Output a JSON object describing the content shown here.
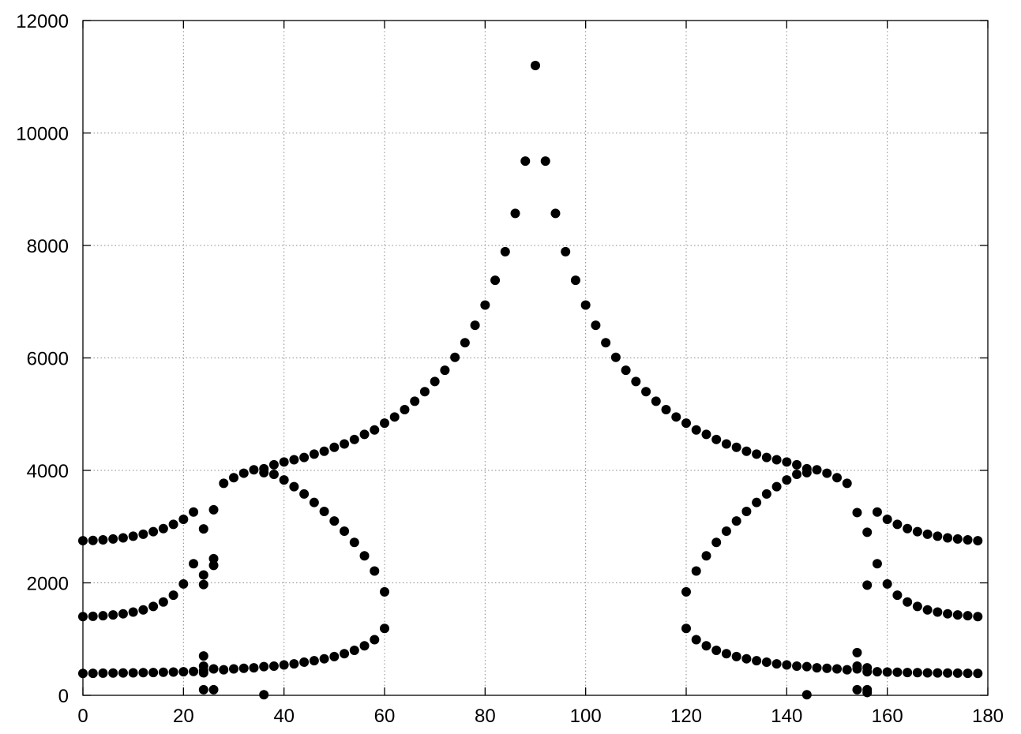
{
  "chart_data": {
    "type": "scatter",
    "title": "",
    "xlabel": "",
    "ylabel": "",
    "xlim": [
      0,
      180
    ],
    "ylim": [
      0,
      12000
    ],
    "xticks": [
      "0",
      "20",
      "40",
      "60",
      "80",
      "100",
      "120",
      "140",
      "160",
      "180"
    ],
    "yticks": [
      "0",
      "2000",
      "4000",
      "6000",
      "8000",
      "10000",
      "12000"
    ],
    "grid": true,
    "legend": "none",
    "marker_color": "#000000",
    "series": [
      {
        "points": [
          [
            0,
            2750
          ],
          [
            2,
            2755
          ],
          [
            4,
            2765
          ],
          [
            6,
            2780
          ],
          [
            8,
            2800
          ],
          [
            10,
            2830
          ],
          [
            12,
            2865
          ],
          [
            14,
            2910
          ],
          [
            16,
            2965
          ],
          [
            18,
            3040
          ],
          [
            20,
            3130
          ],
          [
            22,
            3260
          ],
          [
            26,
            3300
          ],
          [
            28,
            3770
          ],
          [
            30,
            3870
          ],
          [
            32,
            3950
          ],
          [
            34,
            4010
          ],
          [
            36,
            4030
          ],
          [
            38,
            4100
          ],
          [
            40,
            4150
          ],
          [
            42,
            4190
          ],
          [
            44,
            4230
          ],
          [
            46,
            4290
          ],
          [
            48,
            4340
          ],
          [
            50,
            4410
          ],
          [
            52,
            4470
          ],
          [
            54,
            4550
          ],
          [
            56,
            4640
          ],
          [
            58,
            4720
          ],
          [
            60,
            4840
          ],
          [
            62,
            4950
          ],
          [
            64,
            5080
          ],
          [
            66,
            5230
          ],
          [
            68,
            5400
          ],
          [
            70,
            5580
          ],
          [
            72,
            5780
          ],
          [
            74,
            6010
          ],
          [
            76,
            6270
          ],
          [
            78,
            6580
          ],
          [
            80,
            6940
          ],
          [
            82,
            7380
          ],
          [
            84,
            7890
          ],
          [
            86,
            8570
          ],
          [
            88,
            9500
          ],
          [
            90,
            11200
          ],
          [
            92,
            9500
          ],
          [
            94,
            8570
          ],
          [
            96,
            7890
          ],
          [
            98,
            7380
          ],
          [
            100,
            6940
          ],
          [
            102,
            6580
          ],
          [
            104,
            6270
          ],
          [
            106,
            6010
          ],
          [
            108,
            5780
          ],
          [
            110,
            5580
          ],
          [
            112,
            5400
          ],
          [
            114,
            5230
          ],
          [
            116,
            5080
          ],
          [
            118,
            4950
          ],
          [
            120,
            4840
          ],
          [
            122,
            4720
          ],
          [
            124,
            4640
          ],
          [
            126,
            4550
          ],
          [
            128,
            4470
          ],
          [
            130,
            4410
          ],
          [
            132,
            4340
          ],
          [
            134,
            4290
          ],
          [
            136,
            4230
          ],
          [
            138,
            4190
          ],
          [
            140,
            4150
          ],
          [
            142,
            4100
          ],
          [
            144,
            4030
          ],
          [
            146,
            4010
          ],
          [
            148,
            3950
          ],
          [
            150,
            3870
          ],
          [
            152,
            3770
          ],
          [
            154,
            3250
          ],
          [
            158,
            3260
          ],
          [
            160,
            3130
          ],
          [
            162,
            3040
          ],
          [
            164,
            2965
          ],
          [
            166,
            2910
          ],
          [
            168,
            2865
          ],
          [
            170,
            2830
          ],
          [
            172,
            2800
          ],
          [
            174,
            2780
          ],
          [
            176,
            2765
          ],
          [
            178,
            2750
          ],
          [
            0,
            1400
          ],
          [
            2,
            1405
          ],
          [
            4,
            1415
          ],
          [
            6,
            1430
          ],
          [
            8,
            1450
          ],
          [
            10,
            1480
          ],
          [
            12,
            1520
          ],
          [
            14,
            1580
          ],
          [
            16,
            1660
          ],
          [
            18,
            1780
          ],
          [
            20,
            1980
          ],
          [
            22,
            2340
          ],
          [
            24,
            2960
          ],
          [
            24,
            2140
          ],
          [
            24,
            1970
          ],
          [
            26,
            2430
          ],
          [
            26,
            2310
          ],
          [
            36,
            3960
          ],
          [
            38,
            3930
          ],
          [
            40,
            3830
          ],
          [
            42,
            3710
          ],
          [
            44,
            3580
          ],
          [
            46,
            3430
          ],
          [
            48,
            3270
          ],
          [
            50,
            3100
          ],
          [
            52,
            2920
          ],
          [
            54,
            2720
          ],
          [
            56,
            2480
          ],
          [
            58,
            2210
          ],
          [
            60,
            1840
          ],
          [
            120,
            1840
          ],
          [
            122,
            2210
          ],
          [
            124,
            2480
          ],
          [
            126,
            2720
          ],
          [
            128,
            2920
          ],
          [
            130,
            3100
          ],
          [
            132,
            3270
          ],
          [
            134,
            3430
          ],
          [
            136,
            3580
          ],
          [
            138,
            3710
          ],
          [
            140,
            3830
          ],
          [
            142,
            3930
          ],
          [
            144,
            3960
          ],
          [
            156,
            2900
          ],
          [
            156,
            1960
          ],
          [
            158,
            2340
          ],
          [
            160,
            1980
          ],
          [
            162,
            1780
          ],
          [
            164,
            1660
          ],
          [
            166,
            1580
          ],
          [
            168,
            1520
          ],
          [
            170,
            1480
          ],
          [
            172,
            1450
          ],
          [
            174,
            1430
          ],
          [
            176,
            1415
          ],
          [
            178,
            1400
          ],
          [
            0,
            390
          ],
          [
            2,
            392
          ],
          [
            4,
            394
          ],
          [
            6,
            396
          ],
          [
            8,
            398
          ],
          [
            10,
            400
          ],
          [
            12,
            403
          ],
          [
            14,
            406
          ],
          [
            16,
            410
          ],
          [
            18,
            414
          ],
          [
            20,
            420
          ],
          [
            22,
            425
          ],
          [
            24,
            700
          ],
          [
            24,
            520
          ],
          [
            24,
            440
          ],
          [
            24,
            400
          ],
          [
            26,
            470
          ],
          [
            28,
            455
          ],
          [
            30,
            470
          ],
          [
            32,
            480
          ],
          [
            34,
            490
          ],
          [
            36,
            510
          ],
          [
            38,
            520
          ],
          [
            40,
            540
          ],
          [
            42,
            560
          ],
          [
            44,
            590
          ],
          [
            46,
            615
          ],
          [
            48,
            650
          ],
          [
            50,
            690
          ],
          [
            52,
            740
          ],
          [
            54,
            800
          ],
          [
            56,
            880
          ],
          [
            58,
            990
          ],
          [
            60,
            1190
          ],
          [
            120,
            1190
          ],
          [
            122,
            990
          ],
          [
            124,
            880
          ],
          [
            126,
            800
          ],
          [
            128,
            740
          ],
          [
            130,
            690
          ],
          [
            132,
            650
          ],
          [
            134,
            615
          ],
          [
            136,
            590
          ],
          [
            138,
            560
          ],
          [
            140,
            540
          ],
          [
            142,
            520
          ],
          [
            144,
            510
          ],
          [
            146,
            490
          ],
          [
            148,
            480
          ],
          [
            150,
            470
          ],
          [
            152,
            455
          ],
          [
            154,
            760
          ],
          [
            154,
            520
          ],
          [
            154,
            470
          ],
          [
            156,
            490
          ],
          [
            156,
            420
          ],
          [
            158,
            420
          ],
          [
            160,
            414
          ],
          [
            162,
            410
          ],
          [
            164,
            406
          ],
          [
            166,
            403
          ],
          [
            168,
            400
          ],
          [
            170,
            398
          ],
          [
            172,
            396
          ],
          [
            174,
            394
          ],
          [
            176,
            392
          ],
          [
            178,
            390
          ],
          [
            24,
            100
          ],
          [
            26,
            100
          ],
          [
            36,
            10
          ],
          [
            144,
            10
          ],
          [
            154,
            100
          ],
          [
            156,
            100
          ],
          [
            156,
            50
          ]
        ]
      }
    ]
  }
}
